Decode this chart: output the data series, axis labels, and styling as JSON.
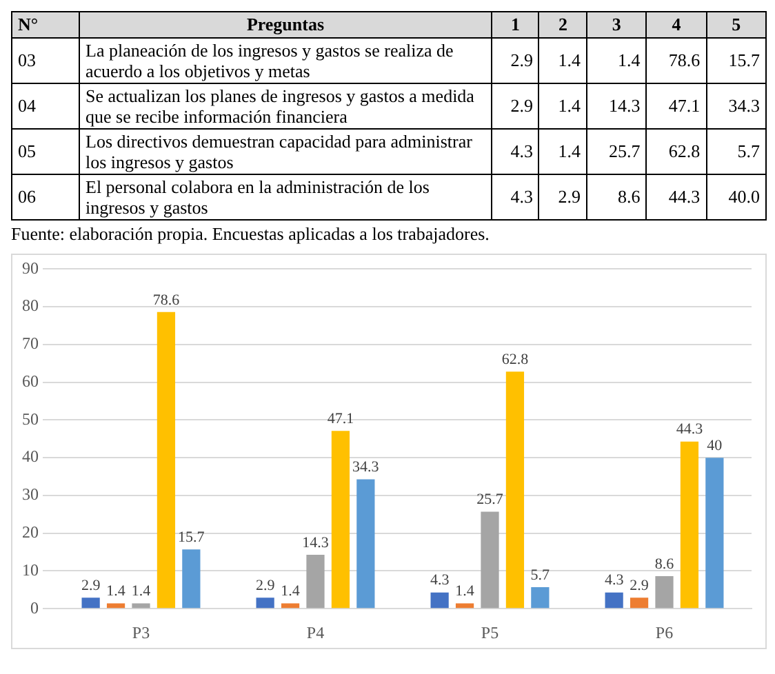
{
  "chart_data": [
    {
      "type": "heatmap",
      "y2label": "N°",
      "ylabel": "Preguntas",
      "categories": [
        "1",
        "2",
        "3",
        "4",
        "5"
      ],
      "y2_categories": [
        "03",
        "04",
        "05",
        "06"
      ],
      "y_categories": [
        "La planeación de los ingresos y gastos se realiza de acuerdo a los objetivos y metas",
        "Se actualizan los planes de ingresos y gastos a medida que se recibe información financiera",
        "Los directivos demuestran capacidad para administrar los ingresos y gastos",
        "El personal colabora en la administración de los ingresos y gastos"
      ],
      "cells": [
        [
          2.9,
          1.4,
          1.4,
          78.6,
          15.7
        ],
        [
          2.9,
          1.4,
          14.3,
          47.1,
          34.3
        ],
        [
          4.3,
          1.4,
          25.7,
          62.8,
          5.7
        ],
        [
          4.3,
          2.9,
          8.6,
          44.3,
          40.0
        ]
      ],
      "cell_labels": [
        [
          "2.9",
          "1.4",
          "1.4",
          "78.6",
          "15.7"
        ],
        [
          "2.9",
          "1.4",
          "14.3",
          "47.1",
          "34.3"
        ],
        [
          "4.3",
          "1.4",
          "25.7",
          "62.8",
          "5.7"
        ],
        [
          "4.3",
          "2.9",
          "8.6",
          "44.3",
          "40.0"
        ]
      ],
      "annotations": [
        "Fuente: elaboración propia. Encuestas aplicadas a los trabajadores."
      ]
    },
    {
      "type": "bar",
      "categories": [
        "P3",
        "P4",
        "P5",
        "P6"
      ],
      "series": [
        {
          "color": "#4472c4",
          "values": [
            2.9,
            2.9,
            4.3,
            4.3
          ]
        },
        {
          "color": "#ed7d31",
          "values": [
            1.4,
            1.4,
            1.4,
            2.9
          ]
        },
        {
          "color": "#a5a5a5",
          "values": [
            1.4,
            14.3,
            25.7,
            8.6
          ]
        },
        {
          "color": "#ffc000",
          "values": [
            78.6,
            47.1,
            62.8,
            44.3
          ]
        },
        {
          "color": "#5b9bd5",
          "values": [
            15.7,
            34.3,
            5.7,
            40
          ]
        }
      ],
      "ylim": [
        0,
        90
      ],
      "yticks": [
        0,
        10,
        20,
        30,
        40,
        50,
        60,
        70,
        80,
        90
      ],
      "grid": "y",
      "data_labels": true
    }
  ]
}
